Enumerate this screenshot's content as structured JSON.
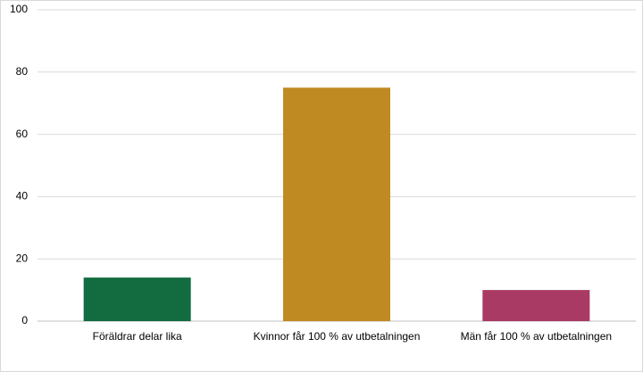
{
  "chart_data": {
    "type": "bar",
    "categories": [
      "Föräldrar delar lika",
      "Kvinnor får 100 % av utbetalningen",
      "Män får 100 % av utbetalningen"
    ],
    "values": [
      14,
      75,
      10
    ],
    "colors": [
      "#136b40",
      "#c08a22",
      "#a93a64"
    ],
    "ylim": [
      0,
      100
    ],
    "yticks": [
      0,
      20,
      40,
      60,
      80,
      100
    ],
    "grid": true
  }
}
